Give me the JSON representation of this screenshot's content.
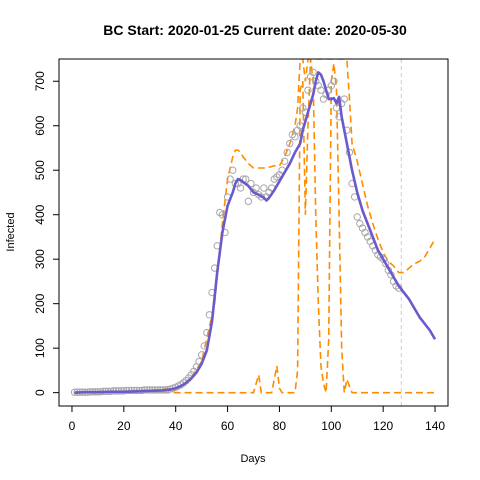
{
  "chart_data": {
    "type": "line",
    "title": "BC Start:  2020-01-25   Current date:  2020-05-30",
    "xlabel": "Days",
    "ylabel": "Infected",
    "xlim": [
      -5,
      145
    ],
    "ylim": [
      -30,
      750
    ],
    "xticks": [
      0,
      20,
      40,
      60,
      80,
      100,
      120,
      140
    ],
    "yticks": [
      0,
      100,
      200,
      300,
      400,
      500,
      600,
      700
    ],
    "vline_x": 127,
    "colors": {
      "observed": "#a8a8a8",
      "fitted": "#6a5acd",
      "bounds": "#ff8c00",
      "vline": "#cccccc"
    },
    "observed": {
      "x": [
        1,
        2,
        3,
        4,
        5,
        6,
        7,
        8,
        9,
        10,
        11,
        12,
        13,
        14,
        15,
        16,
        17,
        18,
        19,
        20,
        21,
        22,
        23,
        24,
        25,
        26,
        27,
        28,
        29,
        30,
        31,
        32,
        33,
        34,
        35,
        36,
        37,
        38,
        39,
        40,
        41,
        42,
        43,
        44,
        45,
        46,
        47,
        48,
        49,
        50,
        51,
        52,
        53,
        54,
        55,
        56,
        57,
        58,
        59,
        60,
        61,
        62,
        63,
        64,
        65,
        66,
        67,
        68,
        69,
        70,
        71,
        72,
        73,
        74,
        75,
        76,
        77,
        78,
        79,
        80,
        81,
        82,
        83,
        84,
        85,
        86,
        87,
        88,
        89,
        90,
        91,
        92,
        93,
        94,
        95,
        96,
        97,
        98,
        99,
        100,
        101,
        102,
        103,
        104,
        105,
        106,
        107,
        108,
        109,
        110,
        111,
        112,
        113,
        114,
        115,
        116,
        117,
        118,
        119,
        120,
        121,
        122,
        123,
        124,
        125,
        126
      ],
      "y": [
        1,
        1,
        1,
        1,
        1,
        1,
        2,
        2,
        2,
        2,
        2,
        3,
        3,
        3,
        3,
        4,
        4,
        4,
        4,
        4,
        5,
        5,
        5,
        5,
        5,
        5,
        5,
        6,
        6,
        6,
        6,
        6,
        6,
        6,
        6,
        6,
        7,
        8,
        10,
        12,
        15,
        18,
        22,
        27,
        33,
        40,
        48,
        58,
        70,
        85,
        105,
        135,
        175,
        225,
        280,
        330,
        405,
        400,
        360,
        440,
        480,
        500,
        470,
        470,
        460,
        480,
        480,
        430,
        470,
        450,
        460,
        445,
        440,
        460,
        440,
        450,
        460,
        480,
        485,
        490,
        500,
        520,
        540,
        560,
        580,
        575,
        590,
        600,
        640,
        630,
        680,
        710,
        720,
        700,
        690,
        680,
        660,
        670,
        680,
        690,
        700,
        640,
        620,
        650,
        660,
        590,
        540,
        470,
        440,
        395,
        380,
        370,
        360,
        350,
        340,
        330,
        320,
        310,
        305,
        300,
        290,
        275,
        265,
        250,
        240,
        235
      ]
    },
    "fitted": {
      "x": [
        1,
        5,
        10,
        15,
        20,
        25,
        30,
        35,
        38,
        40,
        42,
        44,
        46,
        48,
        50,
        52,
        54,
        56,
        58,
        60,
        62,
        63,
        64,
        65,
        66,
        68,
        70,
        72,
        74,
        75,
        76,
        78,
        80,
        82,
        84,
        86,
        88,
        89,
        90,
        91,
        92,
        93,
        94,
        95,
        96,
        97,
        98,
        99,
        100,
        101,
        102,
        103,
        104,
        106,
        108,
        110,
        112,
        114,
        116,
        118,
        120,
        122,
        124,
        126,
        128,
        130,
        132,
        134,
        136,
        138,
        140
      ],
      "y": [
        0,
        1,
        1,
        2,
        2,
        3,
        4,
        5,
        7,
        10,
        15,
        22,
        32,
        45,
        65,
        95,
        160,
        270,
        360,
        420,
        450,
        470,
        480,
        478,
        473,
        465,
        450,
        445,
        438,
        432,
        438,
        455,
        475,
        495,
        515,
        540,
        560,
        590,
        610,
        630,
        650,
        670,
        700,
        720,
        715,
        700,
        680,
        660,
        660,
        662,
        650,
        665,
        620,
        560,
        500,
        450,
        410,
        380,
        350,
        320,
        300,
        280,
        260,
        240,
        225,
        210,
        190,
        170,
        155,
        140,
        120
      ]
    },
    "upper": {
      "x": [
        1,
        10,
        20,
        30,
        40,
        45,
        50,
        55,
        58,
        60,
        62,
        63,
        64,
        65,
        66,
        68,
        70,
        72,
        75,
        78,
        80,
        82,
        84,
        86,
        87,
        88,
        89,
        90,
        91,
        92,
        93,
        94,
        95,
        96,
        97,
        98,
        99,
        100,
        101,
        102,
        103,
        104,
        105,
        106,
        107,
        108,
        110,
        112,
        114,
        116,
        118,
        120,
        122,
        124,
        126,
        128,
        130,
        132,
        134,
        136,
        138,
        140
      ],
      "y": [
        1,
        2,
        3,
        5,
        10,
        25,
        70,
        200,
        380,
        480,
        530,
        545,
        545,
        540,
        530,
        515,
        505,
        505,
        505,
        510,
        510,
        530,
        560,
        600,
        640,
        750,
        750,
        700,
        750,
        750,
        750,
        750,
        750,
        750,
        750,
        750,
        750,
        750,
        750,
        750,
        750,
        750,
        750,
        750,
        660,
        560,
        520,
        470,
        420,
        380,
        345,
        315,
        295,
        285,
        270,
        270,
        280,
        290,
        295,
        305,
        325,
        345
      ]
    },
    "lower": {
      "x": [
        1,
        10,
        20,
        30,
        40,
        45,
        50,
        55,
        58,
        60,
        62,
        65,
        68,
        70,
        71,
        72,
        73,
        75,
        77,
        78,
        79,
        80,
        81,
        82,
        84,
        86,
        87,
        88,
        89,
        90,
        91,
        92,
        93,
        94,
        95,
        96,
        97,
        98,
        99,
        100,
        101,
        102,
        103,
        104,
        105,
        106,
        108,
        110,
        115,
        120,
        125,
        130,
        140
      ],
      "y": [
        0,
        0,
        0,
        0,
        0,
        0,
        0,
        0,
        0,
        0,
        0,
        0,
        0,
        0,
        20,
        40,
        0,
        0,
        0,
        30,
        60,
        10,
        0,
        0,
        0,
        0,
        50,
        680,
        700,
        400,
        600,
        750,
        700,
        400,
        200,
        60,
        20,
        0,
        120,
        700,
        740,
        680,
        400,
        100,
        0,
        30,
        0,
        0,
        0,
        0,
        0,
        0,
        0
      ]
    }
  }
}
